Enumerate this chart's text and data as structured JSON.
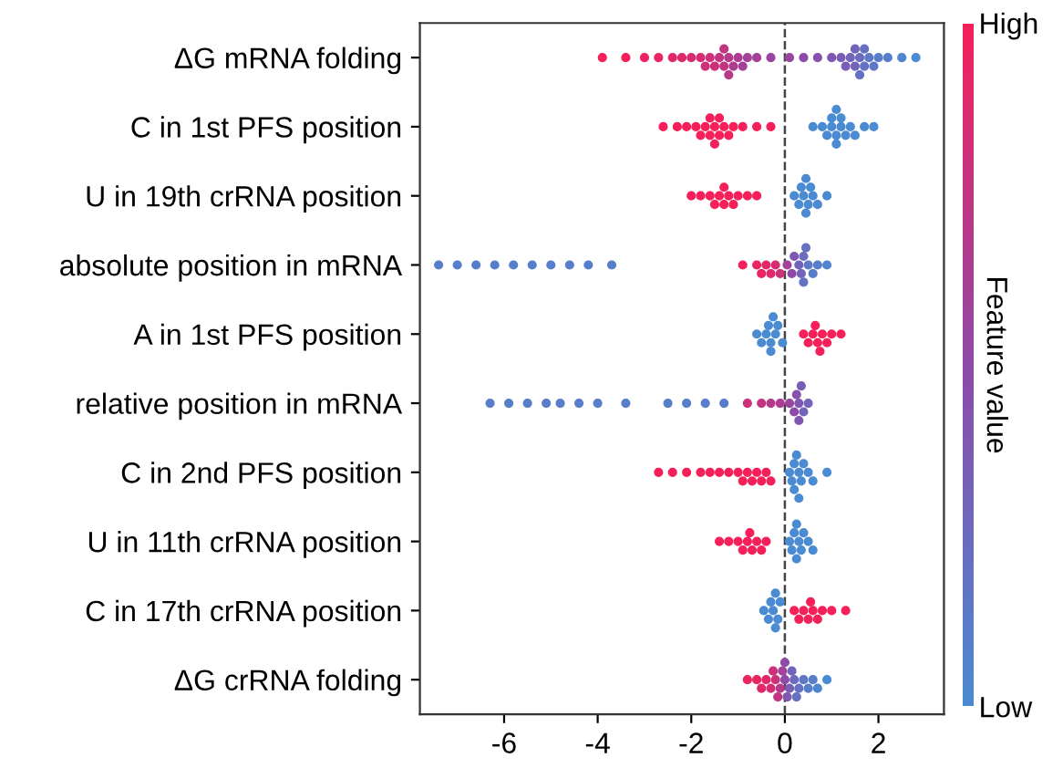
{
  "chart_data": {
    "type": "scatter",
    "orientation": "horizontal",
    "marker": "circle",
    "categories": [
      "ΔG mRNA folding",
      "C in 1st PFS position",
      "U in 19th crRNA position",
      "absolute position in mRNA",
      "A in 1st PFS position",
      "relative position in mRNA",
      "C in 2nd PFS position",
      "U in 11th crRNA position",
      "C in 17th crRNA position",
      "ΔG crRNA folding"
    ],
    "series": [
      {
        "x": [
          "ΔG mRNA folding",
          "ΔG mRNA folding",
          "ΔG mRNA folding",
          "ΔG mRNA folding",
          "ΔG mRNA folding",
          "ΔG mRNA folding",
          "ΔG mRNA folding",
          "ΔG mRNA folding",
          "ΔG mRNA folding",
          "ΔG mRNA folding",
          "ΔG mRNA folding",
          "ΔG mRNA folding",
          "ΔG mRNA folding",
          "ΔG mRNA folding",
          "ΔG mRNA folding",
          "ΔG mRNA folding",
          "ΔG mRNA folding",
          "ΔG mRNA folding",
          "ΔG mRNA folding",
          "ΔG mRNA folding",
          "ΔG mRNA folding",
          "ΔG mRNA folding",
          "ΔG mRNA folding",
          "ΔG mRNA folding",
          "ΔG mRNA folding",
          "ΔG mRNA folding",
          "ΔG mRNA folding",
          "ΔG mRNA folding",
          "ΔG mRNA folding",
          "ΔG mRNA folding",
          "ΔG mRNA folding",
          "ΔG mRNA folding",
          "ΔG mRNA folding",
          "ΔG mRNA folding",
          "ΔG mRNA folding",
          "ΔG mRNA folding",
          "ΔG mRNA folding",
          "ΔG mRNA folding",
          "ΔG mRNA folding",
          "ΔG mRNA folding",
          "ΔG mRNA folding"
        ],
        "colors": [
          "#f5205a",
          "#f5205a",
          "#eb2462",
          "#eb2462",
          "#e0286a",
          "#e0286a",
          "#d62d71",
          "#d62d71",
          "#cc3179",
          "#cc3179",
          "#cc3179",
          "#c23581",
          "#c23581",
          "#c23581",
          "#b73989",
          "#b73989",
          "#ad3d91",
          "#ad3d91",
          "#a34298",
          "#a34298",
          "#a34298",
          "#9846a0",
          "#9846a0",
          "#8e4aa8",
          "#8751ac",
          "#8057b0",
          "#7a5eb5",
          "#7a5eb5",
          "#7364b9",
          "#7364b9",
          "#7364b9",
          "#6c6bbd",
          "#6571c1",
          "#6571c1",
          "#6571c1",
          "#5e78c5",
          "#5e78c5",
          "#587eca",
          "#587eca",
          "#5185ce",
          "#4a8bd2"
        ],
        "values": [
          -3.9,
          -3.4,
          -3.0,
          -2.7,
          -2.4,
          -2.2,
          -2.0,
          -1.8,
          -1.7,
          -1.6,
          -1.5,
          -1.4,
          -1.3,
          -1.3,
          -1.2,
          -1.2,
          -1.1,
          -1.0,
          -0.9,
          -0.8,
          -0.6,
          -0.3,
          0.1,
          0.4,
          0.7,
          1.0,
          1.2,
          1.3,
          1.4,
          1.5,
          1.5,
          1.6,
          1.6,
          1.7,
          1.7,
          1.8,
          1.9,
          2.0,
          2.2,
          2.5,
          2.8
        ],
        "cvalues": [
          1,
          1,
          0.95,
          0.95,
          0.9,
          0.9,
          0.85,
          0.85,
          0.8,
          0.8,
          0.8,
          0.75,
          0.75,
          0.75,
          0.7,
          0.7,
          0.65,
          0.65,
          0.6,
          0.6,
          0.6,
          0.55,
          0.55,
          0.5,
          0.45,
          0.4,
          0.35,
          0.35,
          0.3,
          0.3,
          0.3,
          0.25,
          0.2,
          0.2,
          0.2,
          0.15,
          0.15,
          0.1,
          0.1,
          0.05,
          0
        ]
      },
      {
        "x": [
          "C in 1st PFS position",
          "C in 1st PFS position",
          "C in 1st PFS position",
          "C in 1st PFS position",
          "C in 1st PFS position",
          "C in 1st PFS position",
          "C in 1st PFS position",
          "C in 1st PFS position",
          "C in 1st PFS position",
          "C in 1st PFS position",
          "C in 1st PFS position",
          "C in 1st PFS position",
          "C in 1st PFS position",
          "C in 1st PFS position",
          "C in 1st PFS position",
          "C in 1st PFS position",
          "C in 1st PFS position",
          "C in 1st PFS position",
          "C in 1st PFS position",
          "C in 1st PFS position",
          "C in 1st PFS position",
          "C in 1st PFS position",
          "C in 1st PFS position",
          "C in 1st PFS position",
          "C in 1st PFS position",
          "C in 1st PFS position",
          "C in 1st PFS position",
          "C in 1st PFS position",
          "C in 1st PFS position",
          "C in 1st PFS position",
          "C in 1st PFS position",
          "C in 1st PFS position",
          "C in 1st PFS position"
        ],
        "colors": [
          "#f5205a",
          "#f5205a",
          "#f5205a",
          "#f5205a",
          "#f5205a",
          "#f5205a",
          "#f5205a",
          "#f5205a",
          "#f5205a",
          "#f5205a",
          "#f5205a",
          "#f5205a",
          "#f5205a",
          "#f5205a",
          "#f5205a",
          "#f5205a",
          "#f5205a",
          "#f5205a",
          "#4a8bd2",
          "#4a8bd2",
          "#4a8bd2",
          "#4a8bd2",
          "#4a8bd2",
          "#4a8bd2",
          "#4a8bd2",
          "#4a8bd2",
          "#4a8bd2",
          "#4a8bd2",
          "#4a8bd2",
          "#4a8bd2",
          "#4a8bd2",
          "#4a8bd2",
          "#4a8bd2"
        ],
        "values": [
          -2.6,
          -2.3,
          -2.1,
          -1.9,
          -1.8,
          -1.7,
          -1.6,
          -1.6,
          -1.5,
          -1.5,
          -1.4,
          -1.4,
          -1.3,
          -1.2,
          -1.1,
          -0.9,
          -0.6,
          -0.3,
          0.6,
          0.8,
          0.9,
          1.0,
          1.0,
          1.1,
          1.1,
          1.1,
          1.2,
          1.2,
          1.3,
          1.4,
          1.5,
          1.7,
          1.9
        ],
        "cvalues": [
          1,
          1,
          1,
          1,
          1,
          1,
          1,
          1,
          1,
          1,
          1,
          1,
          1,
          1,
          1,
          1,
          1,
          1,
          0,
          0,
          0,
          0,
          0,
          0,
          0,
          0,
          0,
          0,
          0,
          0,
          0,
          0,
          0
        ]
      },
      {
        "x": [
          "U in 19th crRNA position",
          "U in 19th crRNA position",
          "U in 19th crRNA position",
          "U in 19th crRNA position",
          "U in 19th crRNA position",
          "U in 19th crRNA position",
          "U in 19th crRNA position",
          "U in 19th crRNA position",
          "U in 19th crRNA position",
          "U in 19th crRNA position",
          "U in 19th crRNA position",
          "U in 19th crRNA position",
          "U in 19th crRNA position",
          "U in 19th crRNA position",
          "U in 19th crRNA position",
          "U in 19th crRNA position",
          "U in 19th crRNA position",
          "U in 19th crRNA position",
          "U in 19th crRNA position",
          "U in 19th crRNA position",
          "U in 19th crRNA position",
          "U in 19th crRNA position",
          "U in 19th crRNA position"
        ],
        "colors": [
          "#f5205a",
          "#f5205a",
          "#f5205a",
          "#f5205a",
          "#f5205a",
          "#f5205a",
          "#f5205a",
          "#f5205a",
          "#f5205a",
          "#f5205a",
          "#f5205a",
          "#f5205a",
          "#4a8bd2",
          "#4a8bd2",
          "#4a8bd2",
          "#4a8bd2",
          "#4a8bd2",
          "#4a8bd2",
          "#4a8bd2",
          "#4a8bd2",
          "#4a8bd2",
          "#4a8bd2",
          "#4a8bd2"
        ],
        "values": [
          -2.0,
          -1.8,
          -1.6,
          -1.5,
          -1.4,
          -1.3,
          -1.3,
          -1.2,
          -1.1,
          -1.0,
          -0.8,
          -0.6,
          0.2,
          0.3,
          0.35,
          0.4,
          0.45,
          0.45,
          0.5,
          0.55,
          0.6,
          0.7,
          0.9
        ],
        "cvalues": [
          1,
          1,
          1,
          1,
          1,
          1,
          1,
          1,
          1,
          1,
          1,
          1,
          0,
          0,
          0,
          0,
          0,
          0,
          0,
          0,
          0,
          0,
          0
        ]
      },
      {
        "x": [
          "absolute position in mRNA",
          "absolute position in mRNA",
          "absolute position in mRNA",
          "absolute position in mRNA",
          "absolute position in mRNA",
          "absolute position in mRNA",
          "absolute position in mRNA",
          "absolute position in mRNA",
          "absolute position in mRNA",
          "absolute position in mRNA",
          "absolute position in mRNA",
          "absolute position in mRNA",
          "absolute position in mRNA",
          "absolute position in mRNA",
          "absolute position in mRNA",
          "absolute position in mRNA",
          "absolute position in mRNA",
          "absolute position in mRNA",
          "absolute position in mRNA",
          "absolute position in mRNA",
          "absolute position in mRNA",
          "absolute position in mRNA",
          "absolute position in mRNA",
          "absolute position in mRNA",
          "absolute position in mRNA",
          "absolute position in mRNA",
          "absolute position in mRNA",
          "absolute position in mRNA",
          "absolute position in mRNA"
        ],
        "colors": [
          "#587eca",
          "#587eca",
          "#587eca",
          "#587eca",
          "#587eca",
          "#587eca",
          "#587eca",
          "#587eca",
          "#587eca",
          "#587eca",
          "#f5205a",
          "#eb2462",
          "#eb2462",
          "#e0286a",
          "#e0286a",
          "#d62d71",
          "#cc3179",
          "#a34298",
          "#8e4aa8",
          "#8057b0",
          "#7364b9",
          "#7364b9",
          "#6c6bbd",
          "#6571c1",
          "#6571c1",
          "#5e78c5",
          "#587eca",
          "#587eca",
          "#5185ce"
        ],
        "values": [
          -7.4,
          -7.0,
          -6.6,
          -6.2,
          -5.8,
          -5.4,
          -5.0,
          -4.6,
          -4.2,
          -3.7,
          -0.9,
          -0.6,
          -0.5,
          -0.4,
          -0.3,
          -0.2,
          -0.1,
          0.05,
          0.15,
          0.2,
          0.3,
          0.35,
          0.4,
          0.4,
          0.45,
          0.5,
          0.6,
          0.7,
          0.9
        ],
        "cvalues": [
          0.1,
          0.1,
          0.1,
          0.1,
          0.1,
          0.1,
          0.1,
          0.1,
          0.1,
          0.1,
          1,
          0.95,
          0.95,
          0.9,
          0.9,
          0.85,
          0.8,
          0.6,
          0.5,
          0.4,
          0.3,
          0.3,
          0.25,
          0.2,
          0.2,
          0.15,
          0.1,
          0.1,
          0.05
        ]
      },
      {
        "x": [
          "A in 1st PFS position",
          "A in 1st PFS position",
          "A in 1st PFS position",
          "A in 1st PFS position",
          "A in 1st PFS position",
          "A in 1st PFS position",
          "A in 1st PFS position",
          "A in 1st PFS position",
          "A in 1st PFS position",
          "A in 1st PFS position",
          "A in 1st PFS position",
          "A in 1st PFS position",
          "A in 1st PFS position",
          "A in 1st PFS position",
          "A in 1st PFS position",
          "A in 1st PFS position",
          "A in 1st PFS position",
          "A in 1st PFS position",
          "A in 1st PFS position",
          "A in 1st PFS position"
        ],
        "colors": [
          "#4a8bd2",
          "#4a8bd2",
          "#4a8bd2",
          "#4a8bd2",
          "#4a8bd2",
          "#4a8bd2",
          "#4a8bd2",
          "#4a8bd2",
          "#4a8bd2",
          "#4a8bd2",
          "#f5205a",
          "#f5205a",
          "#f5205a",
          "#f5205a",
          "#f5205a",
          "#f5205a",
          "#f5205a",
          "#f5205a",
          "#f5205a",
          "#f5205a"
        ],
        "values": [
          -0.6,
          -0.5,
          -0.4,
          -0.35,
          -0.3,
          -0.3,
          -0.25,
          -0.2,
          -0.15,
          -0.05,
          0.4,
          0.5,
          0.6,
          0.65,
          0.7,
          0.75,
          0.8,
          0.9,
          1.0,
          1.2
        ],
        "cvalues": [
          0,
          0,
          0,
          0,
          0,
          0,
          0,
          0,
          0,
          0,
          1,
          1,
          1,
          1,
          1,
          1,
          1,
          1,
          1,
          1
        ]
      },
      {
        "x": [
          "relative position in mRNA",
          "relative position in mRNA",
          "relative position in mRNA",
          "relative position in mRNA",
          "relative position in mRNA",
          "relative position in mRNA",
          "relative position in mRNA",
          "relative position in mRNA",
          "relative position in mRNA",
          "relative position in mRNA",
          "relative position in mRNA",
          "relative position in mRNA",
          "relative position in mRNA",
          "relative position in mRNA",
          "relative position in mRNA",
          "relative position in mRNA",
          "relative position in mRNA",
          "relative position in mRNA",
          "relative position in mRNA",
          "relative position in mRNA",
          "relative position in mRNA",
          "relative position in mRNA",
          "relative position in mRNA",
          "relative position in mRNA"
        ],
        "colors": [
          "#587eca",
          "#587eca",
          "#587eca",
          "#587eca",
          "#587eca",
          "#587eca",
          "#587eca",
          "#587eca",
          "#587eca",
          "#587eca",
          "#587eca",
          "#587eca",
          "#cc3179",
          "#c23581",
          "#b73989",
          "#ad3d91",
          "#9846a0",
          "#8e4aa8",
          "#8751ac",
          "#8057b0",
          "#8057b0",
          "#7a5eb5",
          "#7364b9",
          "#7364b9"
        ],
        "values": [
          -6.3,
          -5.9,
          -5.5,
          -5.1,
          -4.8,
          -4.4,
          -4.0,
          -3.4,
          -2.5,
          -2.1,
          -1.7,
          -1.3,
          -0.8,
          -0.5,
          -0.3,
          -0.1,
          0.1,
          0.2,
          0.25,
          0.3,
          0.3,
          0.35,
          0.4,
          0.5
        ],
        "cvalues": [
          0.1,
          0.1,
          0.1,
          0.1,
          0.1,
          0.1,
          0.1,
          0.1,
          0.1,
          0.1,
          0.1,
          0.1,
          0.8,
          0.75,
          0.7,
          0.65,
          0.55,
          0.5,
          0.45,
          0.4,
          0.4,
          0.35,
          0.3,
          0.3
        ]
      },
      {
        "x": [
          "C in 2nd PFS position",
          "C in 2nd PFS position",
          "C in 2nd PFS position",
          "C in 2nd PFS position",
          "C in 2nd PFS position",
          "C in 2nd PFS position",
          "C in 2nd PFS position",
          "C in 2nd PFS position",
          "C in 2nd PFS position",
          "C in 2nd PFS position",
          "C in 2nd PFS position",
          "C in 2nd PFS position",
          "C in 2nd PFS position",
          "C in 2nd PFS position",
          "C in 2nd PFS position",
          "C in 2nd PFS position",
          "C in 2nd PFS position",
          "C in 2nd PFS position",
          "C in 2nd PFS position",
          "C in 2nd PFS position",
          "C in 2nd PFS position",
          "C in 2nd PFS position",
          "C in 2nd PFS position",
          "C in 2nd PFS position",
          "C in 2nd PFS position",
          "C in 2nd PFS position",
          "C in 2nd PFS position"
        ],
        "colors": [
          "#f5205a",
          "#f5205a",
          "#f5205a",
          "#f5205a",
          "#f5205a",
          "#f5205a",
          "#f5205a",
          "#f5205a",
          "#f5205a",
          "#f5205a",
          "#f5205a",
          "#f5205a",
          "#f5205a",
          "#f5205a",
          "#f5205a",
          "#4a8bd2",
          "#4a8bd2",
          "#4a8bd2",
          "#4a8bd2",
          "#4a8bd2",
          "#4a8bd2",
          "#4a8bd2",
          "#4a8bd2",
          "#4a8bd2",
          "#4a8bd2",
          "#4a8bd2",
          "#4a8bd2"
        ],
        "values": [
          -2.7,
          -2.4,
          -2.1,
          -1.8,
          -1.6,
          -1.4,
          -1.2,
          -1.0,
          -0.9,
          -0.8,
          -0.7,
          -0.6,
          -0.5,
          -0.4,
          -0.3,
          0.1,
          0.15,
          0.2,
          0.2,
          0.25,
          0.3,
          0.3,
          0.35,
          0.4,
          0.5,
          0.6,
          0.9
        ],
        "cvalues": [
          1,
          1,
          1,
          1,
          1,
          1,
          1,
          1,
          1,
          1,
          1,
          1,
          1,
          1,
          1,
          0,
          0,
          0,
          0,
          0,
          0,
          0,
          0,
          0,
          0,
          0,
          0
        ]
      },
      {
        "x": [
          "U in 11th crRNA position",
          "U in 11th crRNA position",
          "U in 11th crRNA position",
          "U in 11th crRNA position",
          "U in 11th crRNA position",
          "U in 11th crRNA position",
          "U in 11th crRNA position",
          "U in 11th crRNA position",
          "U in 11th crRNA position",
          "U in 11th crRNA position",
          "U in 11th crRNA position",
          "U in 11th crRNA position",
          "U in 11th crRNA position",
          "U in 11th crRNA position",
          "U in 11th crRNA position",
          "U in 11th crRNA position",
          "U in 11th crRNA position",
          "U in 11th crRNA position",
          "U in 11th crRNA position",
          "U in 11th crRNA position"
        ],
        "colors": [
          "#f5205a",
          "#f5205a",
          "#f5205a",
          "#f5205a",
          "#f5205a",
          "#f5205a",
          "#f5205a",
          "#f5205a",
          "#f5205a",
          "#f5205a",
          "#4a8bd2",
          "#4a8bd2",
          "#4a8bd2",
          "#4a8bd2",
          "#4a8bd2",
          "#4a8bd2",
          "#4a8bd2",
          "#4a8bd2",
          "#4a8bd2",
          "#4a8bd2"
        ],
        "values": [
          -1.4,
          -1.2,
          -1.0,
          -0.9,
          -0.8,
          -0.75,
          -0.7,
          -0.6,
          -0.5,
          -0.4,
          0.1,
          0.15,
          0.2,
          0.25,
          0.25,
          0.3,
          0.35,
          0.4,
          0.5,
          0.6
        ],
        "cvalues": [
          1,
          1,
          1,
          1,
          1,
          1,
          1,
          1,
          1,
          1,
          0,
          0,
          0,
          0,
          0,
          0,
          0,
          0,
          0,
          0
        ]
      },
      {
        "x": [
          "C in 17th crRNA position",
          "C in 17th crRNA position",
          "C in 17th crRNA position",
          "C in 17th crRNA position",
          "C in 17th crRNA position",
          "C in 17th crRNA position",
          "C in 17th crRNA position",
          "C in 17th crRNA position",
          "C in 17th crRNA position",
          "C in 17th crRNA position",
          "C in 17th crRNA position",
          "C in 17th crRNA position",
          "C in 17th crRNA position",
          "C in 17th crRNA position",
          "C in 17th crRNA position",
          "C in 17th crRNA position",
          "C in 17th crRNA position",
          "C in 17th crRNA position"
        ],
        "colors": [
          "#4a8bd2",
          "#4a8bd2",
          "#4a8bd2",
          "#4a8bd2",
          "#4a8bd2",
          "#4a8bd2",
          "#4a8bd2",
          "#4a8bd2",
          "#f5205a",
          "#f5205a",
          "#f5205a",
          "#f5205a",
          "#f5205a",
          "#f5205a",
          "#f5205a",
          "#f5205a",
          "#f5205a",
          "#f5205a"
        ],
        "values": [
          -0.45,
          -0.35,
          -0.3,
          -0.25,
          -0.2,
          -0.2,
          -0.15,
          -0.1,
          0.2,
          0.3,
          0.4,
          0.5,
          0.55,
          0.6,
          0.7,
          0.8,
          1.0,
          1.3
        ],
        "cvalues": [
          0,
          0,
          0,
          0,
          0,
          0,
          0,
          0,
          1,
          1,
          1,
          1,
          1,
          1,
          1,
          1,
          1,
          1
        ]
      },
      {
        "x": [
          "ΔG crRNA folding",
          "ΔG crRNA folding",
          "ΔG crRNA folding",
          "ΔG crRNA folding",
          "ΔG crRNA folding",
          "ΔG crRNA folding",
          "ΔG crRNA folding",
          "ΔG crRNA folding",
          "ΔG crRNA folding",
          "ΔG crRNA folding",
          "ΔG crRNA folding",
          "ΔG crRNA folding",
          "ΔG crRNA folding",
          "ΔG crRNA folding",
          "ΔG crRNA folding",
          "ΔG crRNA folding",
          "ΔG crRNA folding",
          "ΔG crRNA folding",
          "ΔG crRNA folding",
          "ΔG crRNA folding",
          "ΔG crRNA folding",
          "ΔG crRNA folding",
          "ΔG crRNA folding"
        ],
        "colors": [
          "#eb2462",
          "#eb2462",
          "#e0286a",
          "#e0286a",
          "#d62d71",
          "#cc3179",
          "#cc3179",
          "#c23581",
          "#b73989",
          "#a34298",
          "#8e4aa8",
          "#8e4aa8",
          "#8057b0",
          "#7a5eb5",
          "#7364b9",
          "#6c6bbd",
          "#6571c1",
          "#6571c1",
          "#5e78c5",
          "#587eca",
          "#587eca",
          "#5185ce",
          "#4a8bd2"
        ],
        "values": [
          -0.8,
          -0.6,
          -0.5,
          -0.4,
          -0.3,
          -0.25,
          -0.2,
          -0.15,
          -0.1,
          -0.05,
          0,
          0,
          0.05,
          0.1,
          0.15,
          0.2,
          0.25,
          0.3,
          0.4,
          0.5,
          0.6,
          0.7,
          0.9
        ],
        "cvalues": [
          0.95,
          0.95,
          0.9,
          0.9,
          0.85,
          0.8,
          0.8,
          0.75,
          0.7,
          0.6,
          0.5,
          0.5,
          0.4,
          0.35,
          0.3,
          0.25,
          0.2,
          0.2,
          0.15,
          0.1,
          0.1,
          0.05,
          0
        ]
      }
    ],
    "colors": [
      "#4a8bd2",
      "#8e4aa8",
      "#f5205a"
    ],
    "xlim": [
      -7.8,
      3.4
    ],
    "xticks": [
      -6,
      -4,
      -2,
      0,
      2
    ],
    "ref_lines": [
      {
        "axis": "x",
        "value": 0,
        "color": "#444444",
        "line_style": "dashed"
      }
    ],
    "clabel": "Feature value",
    "clim": [
      0,
      1
    ],
    "cticks": [
      {
        "value": 0,
        "label": "Low"
      },
      {
        "value": 1,
        "label": "High"
      }
    ]
  }
}
